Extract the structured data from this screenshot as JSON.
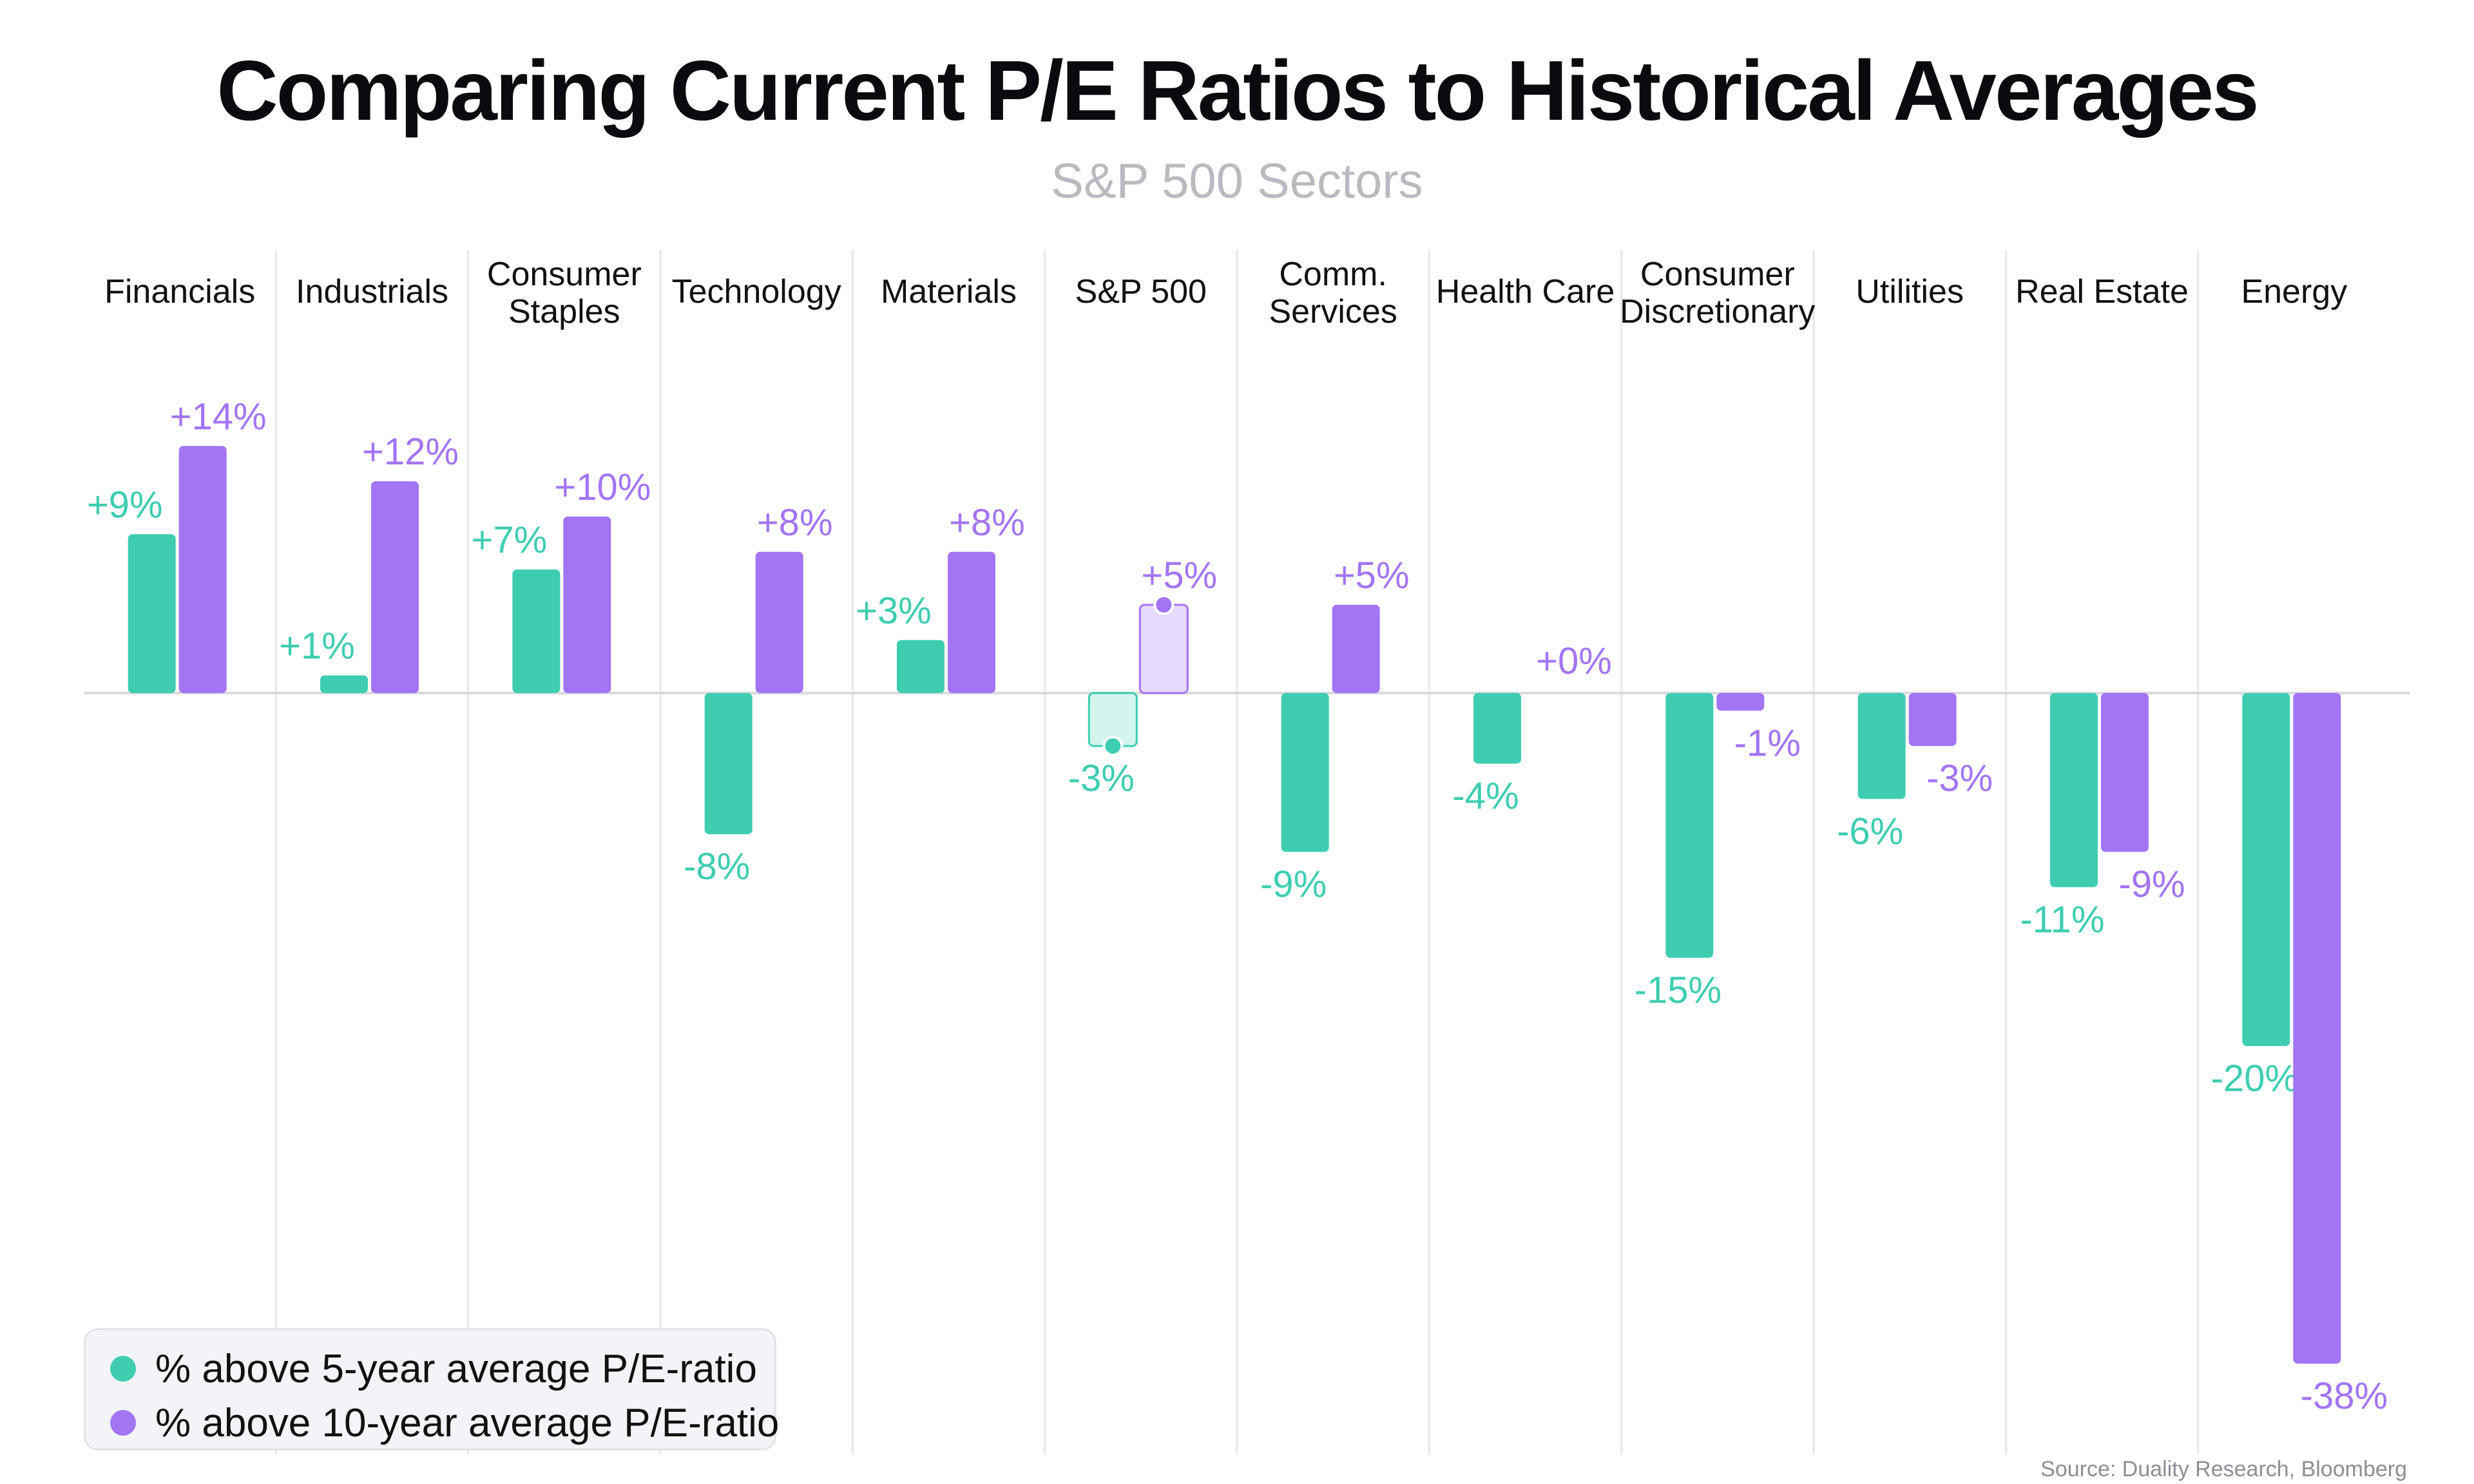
{
  "title": "Comparing Current P/E Ratios to Historical Averages",
  "subtitle": "S&P 500 Sectors",
  "source": "Source: Duality Research, Bloomberg",
  "colors": {
    "five_year": "#3ecdb0",
    "ten_year": "#a275f5",
    "highlight_five_fill": "#d4f4ee",
    "highlight_ten_fill": "#e6dafd"
  },
  "legend": {
    "five_year": "% above 5-year average P/E-ratio",
    "ten_year": "% above 10-year average P/E-ratio"
  },
  "chart_data": {
    "type": "bar",
    "title": "Comparing Current P/E Ratios to Historical Averages",
    "subtitle": "S&P 500 Sectors",
    "xlabel": "",
    "ylabel": "",
    "categories": [
      [
        "Financials"
      ],
      [
        "Industrials"
      ],
      [
        "Consumer",
        "Staples"
      ],
      [
        "Technology"
      ],
      [
        "Materials"
      ],
      [
        "S&P 500"
      ],
      [
        "Comm.",
        "Services"
      ],
      [
        "Health Care"
      ],
      [
        "Consumer",
        "Discretionary"
      ],
      [
        "Utilities"
      ],
      [
        "Real Estate"
      ],
      [
        "Energy"
      ]
    ],
    "highlight_category": 5,
    "series": [
      {
        "name": "% above 5-year average P/E-ratio",
        "values": [
          9,
          1,
          7,
          -8,
          3,
          -3,
          -9,
          -4,
          -15,
          -6,
          -11,
          -20
        ],
        "labels": [
          "+9%",
          "+1%",
          "+7%",
          "-8%",
          "+3%",
          "-3%",
          "-9%",
          "-4%",
          "-15%",
          "-6%",
          "-11%",
          "-20%"
        ]
      },
      {
        "name": "% above 10-year average P/E-ratio",
        "values": [
          14,
          12,
          10,
          8,
          8,
          5,
          5,
          0,
          -1,
          -3,
          -9,
          -38
        ],
        "labels": [
          "+14%",
          "+12%",
          "+10%",
          "+8%",
          "+8%",
          "+5%",
          "+5%",
          "+0%",
          "-1%",
          "-3%",
          "-9%",
          "-38%"
        ]
      }
    ],
    "ylim": [
      -38,
      14
    ],
    "grid": false,
    "legend_position": "bottom-left"
  }
}
